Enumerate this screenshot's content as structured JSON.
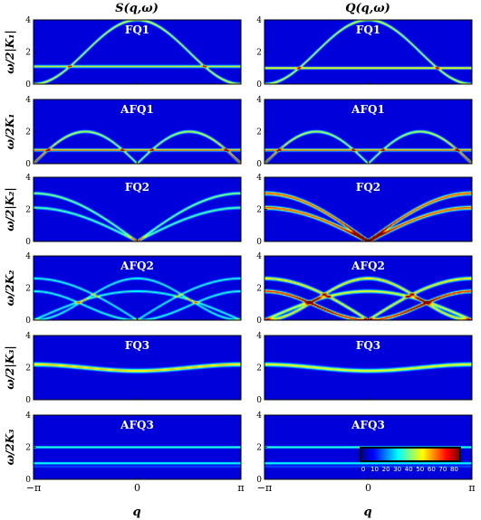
{
  "chart_data": {
    "type": "heatmap",
    "columns": [
      {
        "title": "S(q,ω)"
      },
      {
        "title": "Q(q,ω)"
      }
    ],
    "rows": [
      {
        "panel_label": "FQ1",
        "ylabel": "ω/2|K₁|",
        "yticks": [
          "0",
          "2",
          "4"
        ],
        "ylim": [
          0,
          4
        ]
      },
      {
        "panel_label": "AFQ1",
        "ylabel": "ω/2K₁",
        "yticks": [
          "0",
          "2",
          "4"
        ],
        "ylim": [
          0,
          4
        ]
      },
      {
        "panel_label": "FQ2",
        "ylabel": "ω/2|K₂|",
        "yticks": [
          "0",
          "2",
          "4"
        ],
        "ylim": [
          0,
          4
        ]
      },
      {
        "panel_label": "AFQ2",
        "ylabel": "ω/2K₂",
        "yticks": [
          "0",
          "2",
          "4"
        ],
        "ylim": [
          0,
          4
        ]
      },
      {
        "panel_label": "FQ3",
        "ylabel": "ω/2|K₃|",
        "yticks": [
          "0",
          "2",
          "4"
        ],
        "ylim": [
          0,
          4
        ]
      },
      {
        "panel_label": "AFQ3",
        "ylabel": "ω/2K₃",
        "yticks": [
          "0",
          "2",
          "4"
        ],
        "ylim": [
          0,
          4
        ]
      }
    ],
    "xlabel": "q",
    "xticks": [
      "−π",
      "0",
      "π"
    ],
    "xlim": [
      -3.1416,
      3.1416
    ],
    "colorbar": {
      "ticks": [
        "0",
        "10",
        "20",
        "30",
        "40",
        "50",
        "60",
        "70",
        "80"
      ],
      "range": [
        0,
        80
      ],
      "colormap": "jet"
    },
    "branches": [
      [
        [
          {
            "kind": "cos",
            "a": 2,
            "b": 2,
            "w": 1,
            "amp": 0.55
          },
          {
            "kind": "flat",
            "c": 1.1,
            "w": 0.9,
            "amp": 0.55
          }
        ],
        [
          {
            "kind": "cos",
            "a": 2,
            "b": 2,
            "w": 1,
            "amp": 0.55
          },
          {
            "kind": "flat",
            "c": 1.0,
            "w": 0.9,
            "amp": 0.6
          }
        ]
      ],
      [
        [
          {
            "kind": "abssin",
            "a": 2,
            "w": 1,
            "amp": 0.5,
            "hotEdge": 1
          },
          {
            "kind": "flat",
            "c": 0.85,
            "w": 0.9,
            "amp": 0.7
          }
        ],
        [
          {
            "kind": "abssin",
            "a": 2,
            "w": 1,
            "amp": 0.5,
            "hotEdge": 1
          },
          {
            "kind": "flat",
            "c": 0.85,
            "w": 0.9,
            "amp": 0.7
          }
        ]
      ],
      [
        [
          {
            "kind": "abshalf",
            "a": 3,
            "w": 1,
            "amp": 0.45
          },
          {
            "kind": "abshalf",
            "a": 2.1,
            "w": 1,
            "amp": 0.4
          }
        ],
        [
          {
            "kind": "abshalf",
            "a": 3,
            "w": 1.3,
            "amp": 0.75,
            "hotCenter": 1
          },
          {
            "kind": "abshalf",
            "a": 2.1,
            "w": 1.3,
            "amp": 0.75,
            "hotCenter": 1
          }
        ]
      ],
      [
        [
          {
            "kind": "cos",
            "a": 1.3,
            "b": 1.3,
            "w": 0.9,
            "amp": 0.35
          },
          {
            "kind": "negcos",
            "a": 0.9,
            "b": 0.9,
            "w": 0.9,
            "amp": 0.35
          },
          {
            "kind": "abshalf",
            "a": 2.6,
            "w": 0.9,
            "amp": 0.35
          },
          {
            "kind": "coshalf",
            "a": 1.8,
            "w": 0.9,
            "amp": 0.35
          }
        ],
        [
          {
            "kind": "cos",
            "a": 1.3,
            "b": 1.3,
            "w": 1.2,
            "amp": 0.6
          },
          {
            "kind": "negcos",
            "a": 0.9,
            "b": 0.9,
            "w": 1.2,
            "amp": 0.8,
            "hotMid": 1
          },
          {
            "kind": "abshalf",
            "a": 2.6,
            "w": 1.2,
            "amp": 0.6
          },
          {
            "kind": "coshalf",
            "a": 1.8,
            "w": 1.2,
            "amp": 0.55
          }
        ]
      ],
      [
        [
          {
            "kind": "wave",
            "c": 2.0,
            "d": 0.2,
            "w": 1.4,
            "amp": 0.6
          }
        ],
        [
          {
            "kind": "wave",
            "c": 2.0,
            "d": 0.2,
            "w": 1.4,
            "amp": 0.55
          }
        ]
      ],
      [
        [
          {
            "kind": "flat",
            "c": 2.0,
            "w": 0.7,
            "amp": 0.45
          },
          {
            "kind": "flat",
            "c": 1.0,
            "w": 0.7,
            "amp": 0.4
          },
          {
            "kind": "flat",
            "c": 0.8,
            "w": 0.5,
            "amp": 0.2
          }
        ],
        [
          {
            "kind": "flat",
            "c": 2.0,
            "w": 0.7,
            "amp": 0.45
          },
          {
            "kind": "flat",
            "c": 1.0,
            "w": 0.7,
            "amp": 0.4
          },
          {
            "kind": "flat",
            "c": 0.8,
            "w": 0.5,
            "amp": 0.2
          }
        ]
      ]
    ]
  }
}
